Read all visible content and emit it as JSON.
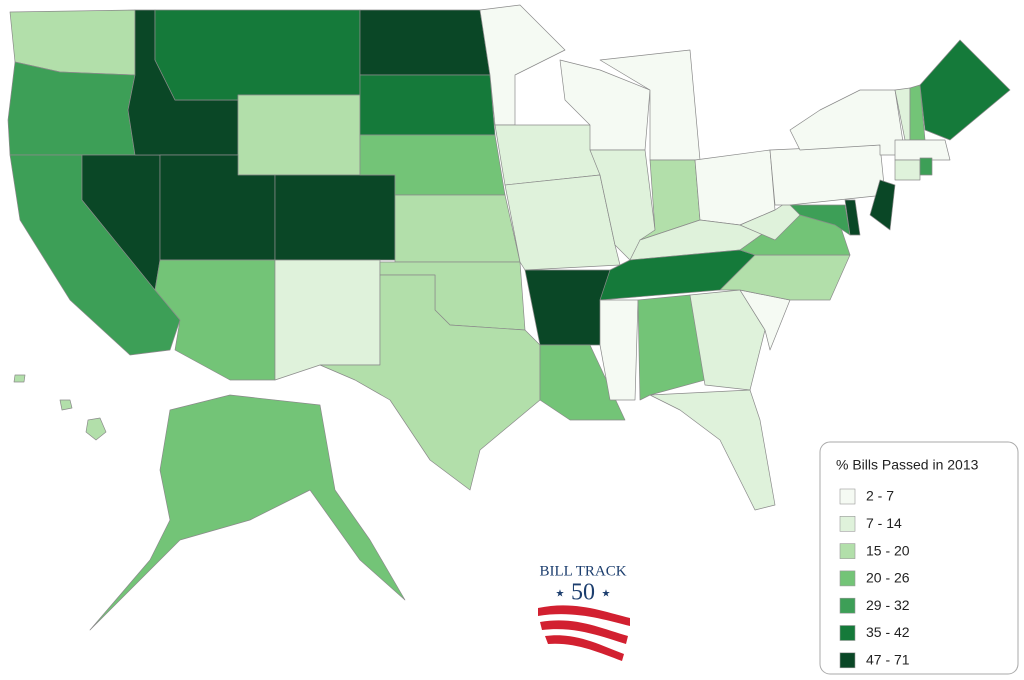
{
  "legend": {
    "title": "% Bills Passed in 2013",
    "items": [
      {
        "label": "2 - 7",
        "color": "#f5faf3"
      },
      {
        "label": "7 - 14",
        "color": "#dff2db"
      },
      {
        "label": "15 - 20",
        "color": "#b2dfaa"
      },
      {
        "label": "20 - 26",
        "color": "#73c477"
      },
      {
        "label": "29 - 32",
        "color": "#3d9f57"
      },
      {
        "label": "35 - 42",
        "color": "#157a3a"
      },
      {
        "label": "47 - 71",
        "color": "#0a4726"
      }
    ]
  },
  "logo": {
    "name": "BILL TRACK",
    "number": "50"
  }
}
